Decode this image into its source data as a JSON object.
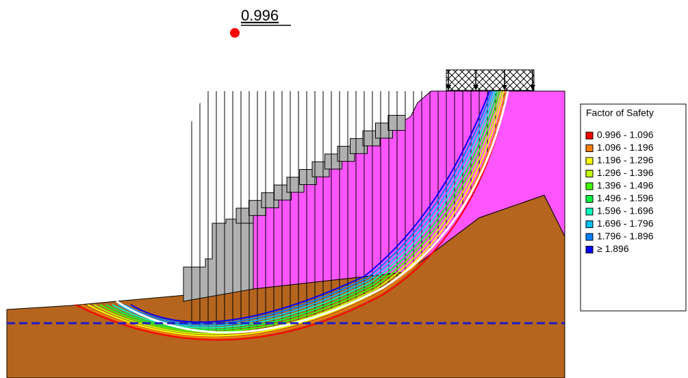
{
  "fos_label": "0.996",
  "legend": {
    "title": "Factor of Safety",
    "items": [
      {
        "label": "0.996 - 1.096",
        "color": "#ff0000"
      },
      {
        "label": "1.096 - 1.196",
        "color": "#ff7f00"
      },
      {
        "label": "1.196 - 1.296",
        "color": "#ffff00"
      },
      {
        "label": "1.296 - 1.396",
        "color": "#bfff00"
      },
      {
        "label": "1.396 - 1.496",
        "color": "#40ff00"
      },
      {
        "label": "1.496 - 1.596",
        "color": "#00ff40"
      },
      {
        "label": "1.596 - 1.696",
        "color": "#00ffbf"
      },
      {
        "label": "1.696 - 1.796",
        "color": "#00bfff"
      },
      {
        "label": "1.796 - 1.896",
        "color": "#0080ff"
      },
      {
        "label": "≥ 1.896",
        "color": "#0000ff"
      }
    ]
  }
}
